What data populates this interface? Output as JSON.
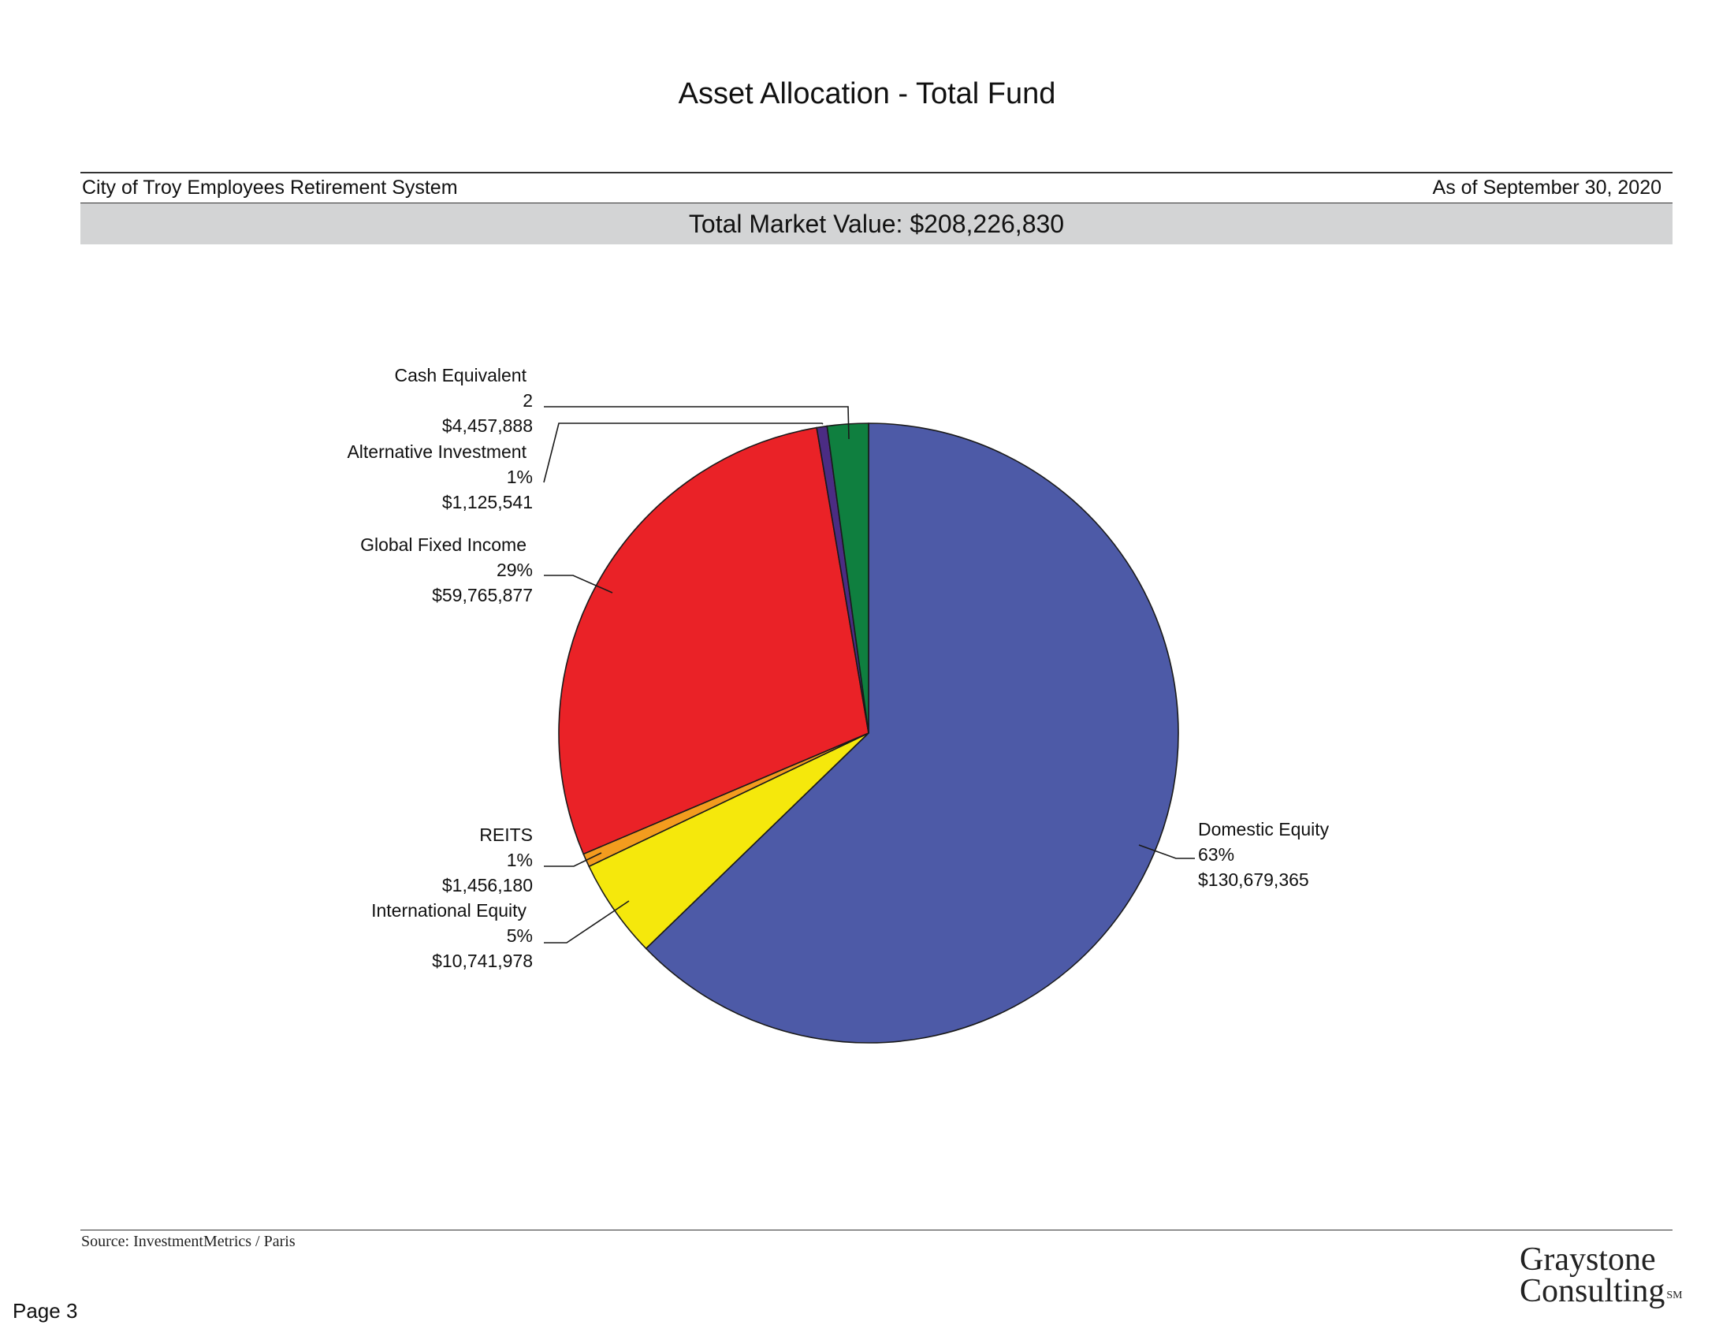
{
  "title": "Asset Allocation - Total Fund",
  "header": {
    "organization": "City of Troy Employees Retirement System",
    "as_of": "As of September 30, 2020"
  },
  "total_market_value": "Total Market Value: $208,226,830",
  "chart_data": {
    "type": "pie",
    "title": "Asset Allocation - Total Fund",
    "start": "12 o'clock, clockwise",
    "slices": [
      {
        "name": "Domestic Equity",
        "value": 130679365,
        "percent_label": "63%",
        "value_label": "$130,679,365",
        "color": "#4d5aa7"
      },
      {
        "name": "International Equity",
        "value": 10741978,
        "percent_label": "5%",
        "value_label": "$10,741,978",
        "color": "#f5e80c"
      },
      {
        "name": "REITS",
        "value": 1456180,
        "percent_label": "1%",
        "value_label": "$1,456,180",
        "color": "#f39c1e"
      },
      {
        "name": "Global Fixed Income",
        "value": 59765877,
        "percent_label": "29%",
        "value_label": "$59,765,877",
        "color": "#ea2227"
      },
      {
        "name": "Alternative Investment",
        "value": 1125541,
        "percent_label": "1%",
        "value_label": "$1,125,541",
        "color": "#4b2c83"
      },
      {
        "name": "Cash Equivalent",
        "value": 4457888,
        "percent_label": "2",
        "value_label": "$4,457,888",
        "color": "#0f7f3f"
      }
    ]
  },
  "footer": {
    "source": "Source: InvestmentMetrics / Paris",
    "page": "Page 3",
    "logo_line1": "Graystone",
    "logo_line2": "Consulting",
    "logo_mark": "SM"
  }
}
